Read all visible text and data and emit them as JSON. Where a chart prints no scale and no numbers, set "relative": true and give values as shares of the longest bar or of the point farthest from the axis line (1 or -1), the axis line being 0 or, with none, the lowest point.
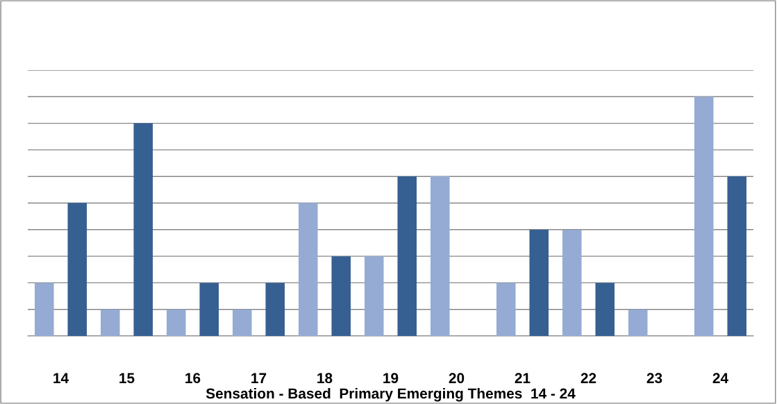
{
  "chart_data": {
    "type": "bar",
    "xlabel": "Sensation - Based  Primary Emerging Themes  14 - 24",
    "categories": [
      "14",
      "15",
      "16",
      "17",
      "18",
      "19",
      "20",
      "21",
      "22",
      "23",
      "24"
    ],
    "relative": true,
    "grid": "y",
    "series": [
      {
        "color": "#95abd3",
        "values": [
          0.222,
          0.111,
          0.111,
          0.111,
          0.556,
          0.333,
          0.667,
          0.222,
          0.444,
          0.111,
          1
        ]
      },
      {
        "color": "#376092",
        "values": [
          0.556,
          0.889,
          0.222,
          0.222,
          0.333,
          0.667,
          0,
          0.444,
          0.222,
          0,
          0.667
        ]
      }
    ]
  }
}
